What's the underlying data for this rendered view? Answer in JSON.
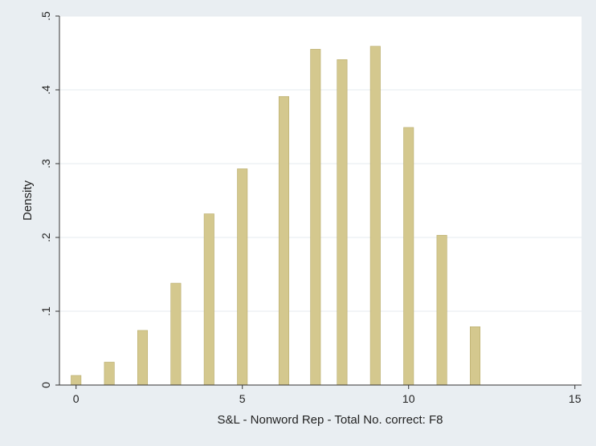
{
  "chart_data": {
    "type": "bar",
    "xlabel": "S&L - Nonword Rep - Total No. correct: F8",
    "ylabel": "Density",
    "xlim": [
      -0.5,
      15.2
    ],
    "ylim": [
      0,
      0.5
    ],
    "xticks": [
      0,
      5,
      10,
      15
    ],
    "xtick_labels": [
      "0",
      "5",
      "10",
      "15"
    ],
    "yticks": [
      0,
      0.1,
      0.2,
      0.3,
      0.4,
      0.5
    ],
    "ytick_labels": [
      "0",
      ".1",
      ".2",
      ".3",
      ".4",
      ".5"
    ],
    "grid": true,
    "legend": "none",
    "bar_width": 0.3,
    "colors": {
      "bar_fill": "#d4c88e",
      "bar_stroke": "#b8ab6a",
      "plot_background": "#ffffff",
      "outer_background": "#e9eef2",
      "grid": "#e6ebef",
      "axis": "#333333"
    },
    "x": [
      0,
      1,
      2,
      3,
      4,
      5,
      6.25,
      7.2,
      8,
      9,
      10,
      11,
      12
    ],
    "values": [
      0.013,
      0.031,
      0.074,
      0.138,
      0.232,
      0.293,
      0.391,
      0.455,
      0.441,
      0.459,
      0.349,
      0.203,
      0.079
    ]
  }
}
